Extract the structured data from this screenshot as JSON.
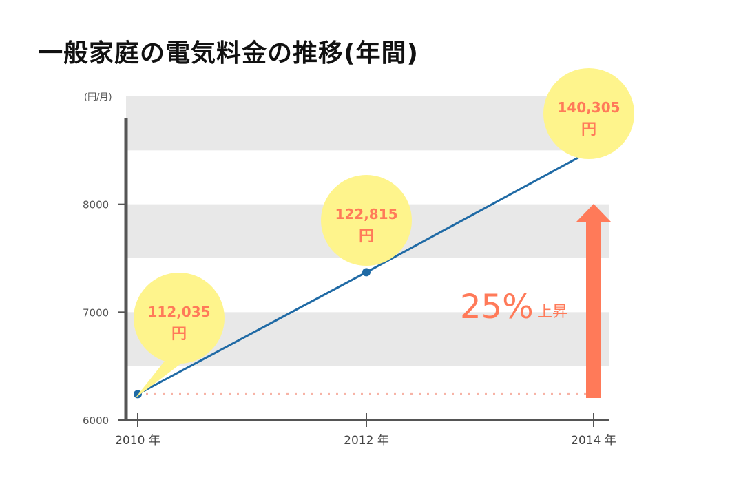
{
  "title": "一般家庭の電気料金の推移(年間)",
  "chart_data": {
    "type": "line",
    "title": "一般家庭の電気料金の推移(年間)",
    "ylabel": "(円/月)",
    "xlabel": "",
    "ylim": [
      6000,
      9000
    ],
    "yticks": [
      "6000",
      "7000",
      "8000"
    ],
    "ytick_values": [
      6000,
      7000,
      8000
    ],
    "x": [
      "2010 年",
      "2012 年",
      "2014 年"
    ],
    "values": [
      6240,
      7370,
      8510
    ],
    "grid": "alternating horizontal bands",
    "annotations": [
      {
        "value": "112,035",
        "unit": "円"
      },
      {
        "value": "122,815",
        "unit": "円"
      },
      {
        "value": "140,305",
        "unit": "円"
      }
    ],
    "increase_label": {
      "value": "25%",
      "suffix": "上昇"
    },
    "colors": {
      "line": "#1f6aa5",
      "callout": "#fef48c",
      "callout_text": "#ff7a59",
      "arrow": "#ff7a59",
      "band": "#e8e8e8",
      "baseline_dots": "#f7b3a6",
      "axis": "#555555"
    }
  }
}
